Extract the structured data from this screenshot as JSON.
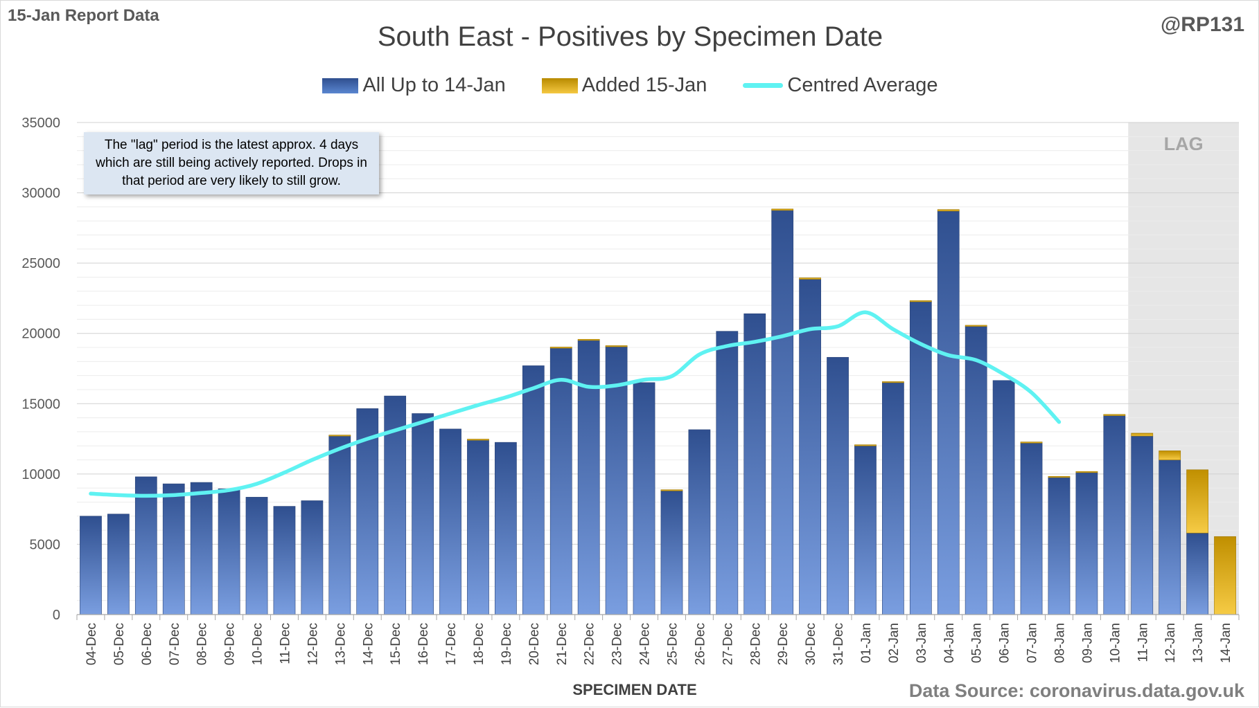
{
  "header": {
    "report_label": "15-Jan Report Data",
    "author": "@RP131",
    "source": "Data Source: coronavirus.data.gov.uk"
  },
  "note": "The \"lag\" period is the latest approx. 4 days which are still being actively reported.  Drops in that period are very likely to still grow.",
  "lag_label": "LAG",
  "colors": {
    "blue_top": "#2f4f8f",
    "blue_bottom": "#7a9ee0",
    "gold_top": "#c08f00",
    "gold_bottom": "#f6cb45",
    "avg_line": "#5ff2f2",
    "lag_shade": "#e6e6e6"
  },
  "chart_data": {
    "type": "bar",
    "title": "South East - Positives by Specimen Date",
    "xlabel": "SPECIMEN DATE",
    "ylabel": "",
    "ylim": [
      0,
      35000
    ],
    "yticks": [
      0,
      5000,
      10000,
      15000,
      20000,
      25000,
      30000,
      35000
    ],
    "grid": true,
    "legend_position": "top",
    "stacked": true,
    "categories": [
      "04-Dec",
      "05-Dec",
      "06-Dec",
      "07-Dec",
      "08-Dec",
      "09-Dec",
      "10-Dec",
      "11-Dec",
      "12-Dec",
      "13-Dec",
      "14-Dec",
      "15-Dec",
      "16-Dec",
      "17-Dec",
      "18-Dec",
      "19-Dec",
      "20-Dec",
      "21-Dec",
      "22-Dec",
      "23-Dec",
      "24-Dec",
      "25-Dec",
      "26-Dec",
      "27-Dec",
      "28-Dec",
      "29-Dec",
      "30-Dec",
      "31-Dec",
      "01-Jan",
      "02-Jan",
      "03-Jan",
      "04-Jan",
      "05-Jan",
      "06-Jan",
      "07-Jan",
      "08-Jan",
      "09-Jan",
      "10-Jan",
      "11-Jan",
      "12-Jan",
      "13-Jan",
      "14-Jan"
    ],
    "lag_categories": [
      "11-Jan",
      "12-Jan",
      "13-Jan",
      "14-Jan"
    ],
    "series": [
      {
        "name": "All Up to 14-Jan",
        "kind": "bar",
        "values": [
          7000,
          7150,
          9800,
          9300,
          9400,
          8950,
          8350,
          7700,
          8100,
          12700,
          14650,
          15550,
          14300,
          13200,
          12400,
          12250,
          17700,
          18950,
          19500,
          19050,
          16500,
          8800,
          13150,
          20150,
          21400,
          28750,
          23850,
          18300,
          12000,
          16500,
          22250,
          28700,
          20500,
          16650,
          12200,
          9750,
          10100,
          14150,
          12700,
          11000,
          5800,
          0
        ]
      },
      {
        "name": "Added 15-Jan",
        "kind": "bar",
        "values": [
          0,
          0,
          0,
          0,
          0,
          0,
          0,
          0,
          0,
          70,
          0,
          0,
          0,
          0,
          80,
          0,
          0,
          80,
          80,
          80,
          0,
          80,
          0,
          0,
          0,
          100,
          100,
          0,
          80,
          70,
          80,
          110,
          80,
          0,
          80,
          80,
          80,
          90,
          200,
          650,
          4500,
          5550
        ]
      },
      {
        "name": "Centred Average",
        "kind": "line",
        "values": [
          8600,
          8500,
          8450,
          8500,
          8650,
          8850,
          9300,
          10100,
          11000,
          11800,
          12500,
          13100,
          13700,
          14300,
          14900,
          15450,
          16100,
          16700,
          16200,
          16300,
          16700,
          16950,
          18500,
          19100,
          19400,
          19800,
          20300,
          20500,
          21500,
          20300,
          19250,
          18450,
          18100,
          17100,
          15800,
          13700,
          null,
          null,
          null,
          null,
          null,
          null
        ]
      }
    ]
  }
}
